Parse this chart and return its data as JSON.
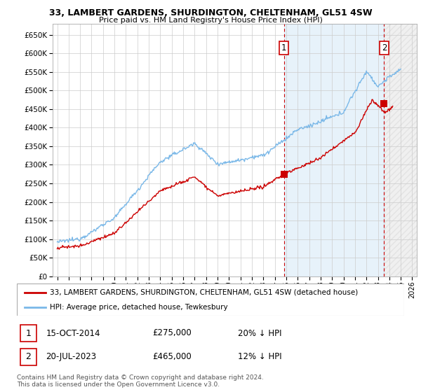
{
  "title_line1": "33, LAMBERT GARDENS, SHURDINGTON, CHELTENHAM, GL51 4SW",
  "title_line2": "Price paid vs. HM Land Registry's House Price Index (HPI)",
  "ytick_values": [
    0,
    50000,
    100000,
    150000,
    200000,
    250000,
    300000,
    350000,
    400000,
    450000,
    500000,
    550000,
    600000,
    650000
  ],
  "ylim": [
    0,
    680000
  ],
  "hpi_color": "#7ab8e8",
  "sale_color": "#cc0000",
  "dashed_line_color": "#cc0000",
  "shading_color": "#ddeeff",
  "legend_label_sale": "33, LAMBERT GARDENS, SHURDINGTON, CHELTENHAM, GL51 4SW (detached house)",
  "legend_label_hpi": "HPI: Average price, detached house, Tewkesbury",
  "sale1_date": "15-OCT-2014",
  "sale1_price": "£275,000",
  "sale1_note": "20% ↓ HPI",
  "sale2_date": "20-JUL-2023",
  "sale2_price": "£465,000",
  "sale2_note": "12% ↓ HPI",
  "footnote": "Contains HM Land Registry data © Crown copyright and database right 2024.\nThis data is licensed under the Open Government Licence v3.0.",
  "grid_color": "#cccccc",
  "sale1_year": 2014.8,
  "sale2_year": 2023.55,
  "sale1_price_val": 275000,
  "sale2_price_val": 465000,
  "xlim_left": 1994.6,
  "xlim_right": 2026.4
}
